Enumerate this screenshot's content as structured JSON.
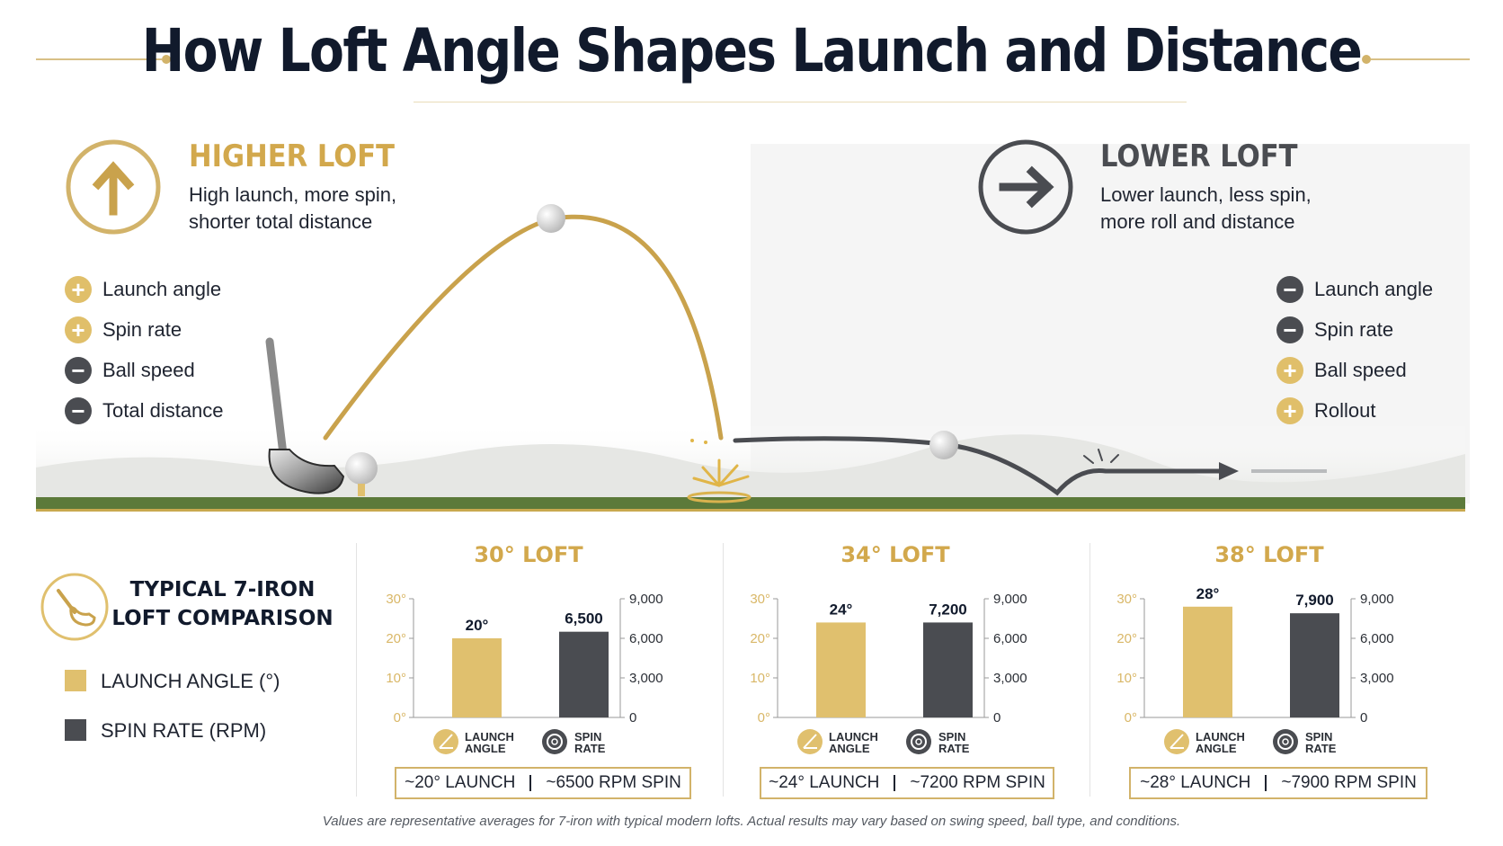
{
  "title": "How Loft Angle Shapes Launch and Distance",
  "higher": {
    "title": "HIGHER LOFT",
    "desc_line1": "High launch, more spin,",
    "desc_line2": "shorter total distance",
    "items": [
      {
        "sign": "+",
        "label": "Launch angle"
      },
      {
        "sign": "+",
        "label": "Spin rate"
      },
      {
        "sign": "−",
        "label": "Ball speed"
      },
      {
        "sign": "−",
        "label": "Total distance"
      }
    ]
  },
  "lower": {
    "title": "LOWER LOFT",
    "desc_line1": "Lower launch, less spin,",
    "desc_line2": "more roll and distance",
    "items": [
      {
        "sign": "−",
        "label": "Launch angle"
      },
      {
        "sign": "−",
        "label": "Spin rate"
      },
      {
        "sign": "+",
        "label": "Ball speed"
      },
      {
        "sign": "+",
        "label": "Rollout"
      }
    ]
  },
  "comparison": {
    "title_line1": "TYPICAL 7-IRON",
    "title_line2": "LOFT COMPARISON",
    "legend_launch": "LAUNCH ANGLE (°)",
    "legend_spin": "SPIN RATE (RPM)",
    "icon_launch_line1": "LAUNCH",
    "icon_launch_line2": "ANGLE",
    "icon_spin_line1": "SPIN",
    "icon_spin_line2": "RATE"
  },
  "colors": {
    "gold": "#e0c06e",
    "gold_dark": "#d2a84c",
    "charcoal": "#4a4c51",
    "navy": "#111a2c",
    "grass": "#5c7a3a"
  },
  "chart_data": [
    {
      "type": "bar",
      "title": "30° LOFT",
      "categories": [
        "LAUNCH ANGLE",
        "SPIN RATE"
      ],
      "series": [
        {
          "name": "LAUNCH ANGLE (°)",
          "axis": "left",
          "value": 20,
          "label": "20°"
        },
        {
          "name": "SPIN RATE (RPM)",
          "axis": "right",
          "value": 6500,
          "label": "6,500"
        }
      ],
      "ylim_left": [
        0,
        30
      ],
      "ticks_left": [
        "0°",
        "10°",
        "20°",
        "30°"
      ],
      "ylim_right": [
        0,
        9000
      ],
      "ticks_right": [
        "0",
        "3,000",
        "6,000",
        "9,000"
      ],
      "summary_launch": "~20° LAUNCH",
      "summary_spin": "~6500 RPM SPIN"
    },
    {
      "type": "bar",
      "title": "34° LOFT",
      "categories": [
        "LAUNCH ANGLE",
        "SPIN RATE"
      ],
      "series": [
        {
          "name": "LAUNCH ANGLE (°)",
          "axis": "left",
          "value": 24,
          "label": "24°"
        },
        {
          "name": "SPIN RATE (RPM)",
          "axis": "right",
          "value": 7200,
          "label": "7,200"
        }
      ],
      "ylim_left": [
        0,
        30
      ],
      "ticks_left": [
        "0°",
        "10°",
        "20°",
        "30°"
      ],
      "ylim_right": [
        0,
        9000
      ],
      "ticks_right": [
        "0",
        "3,000",
        "6,000",
        "9,000"
      ],
      "summary_launch": "~24° LAUNCH",
      "summary_spin": "~7200 RPM SPIN"
    },
    {
      "type": "bar",
      "title": "38° LOFT",
      "categories": [
        "LAUNCH ANGLE",
        "SPIN RATE"
      ],
      "series": [
        {
          "name": "LAUNCH ANGLE (°)",
          "axis": "left",
          "value": 28,
          "label": "28°"
        },
        {
          "name": "SPIN RATE (RPM)",
          "axis": "right",
          "value": 7900,
          "label": "7,900"
        }
      ],
      "ylim_left": [
        0,
        30
      ],
      "ticks_left": [
        "0°",
        "10°",
        "20°",
        "30°"
      ],
      "ylim_right": [
        0,
        9000
      ],
      "ticks_right": [
        "0",
        "3,000",
        "6,000",
        "9,000"
      ],
      "summary_launch": "~28° LAUNCH",
      "summary_spin": "~7900 RPM SPIN"
    }
  ],
  "footnote": "Values are representative averages for 7-iron with typical modern lofts. Actual results may vary based on swing speed, ball type, and conditions."
}
